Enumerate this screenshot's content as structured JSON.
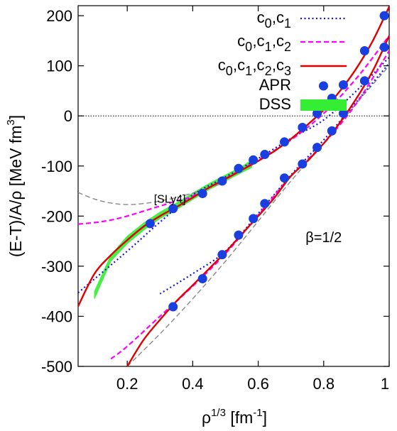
{
  "chart_data": {
    "type": "line",
    "xlabel": "ρ",
    "xlabel_sup": "1/3",
    "xlabel_unit": "[fm",
    "xlabel_unit_sup": "-1",
    "xlabel_unit_close": "]",
    "ylabel": "(E-T)/A/ρ [MeV fm",
    "ylabel_sup": "3",
    "ylabel_close": "]",
    "xlim": [
      0.05,
      1.0
    ],
    "ylim": [
      -500,
      220
    ],
    "xticks": [
      0.2,
      0.4,
      0.6,
      0.8,
      1.0
    ],
    "xtick_labels": [
      "0.2",
      "0.4",
      "0.6",
      "0.8",
      "1"
    ],
    "yticks": [
      -500,
      -400,
      -300,
      -200,
      -100,
      0,
      100,
      200
    ],
    "ytick_labels": [
      "-500",
      "-400",
      "-300",
      "-200",
      "-100",
      "0",
      "100",
      "200"
    ],
    "grid": false,
    "zero_line": true,
    "legend_position": "top-right",
    "legend": [
      {
        "label": "c",
        "subs": [
          "0",
          "1"
        ],
        "color": "#1515d8",
        "style": "dotted"
      },
      {
        "label": "c",
        "subs": [
          "0",
          "1",
          "2"
        ],
        "color": "#ff00ff",
        "style": "dashed"
      },
      {
        "label": "c",
        "subs": [
          "0",
          "1",
          "2",
          "3"
        ],
        "color": "#e00000",
        "style": "solid"
      },
      {
        "label": "APR",
        "color": "#1a3fe0",
        "style": "marker"
      },
      {
        "label": "DSS",
        "color": "#33ee33",
        "style": "band"
      }
    ],
    "annotations": [
      {
        "text": "[SLy4]",
        "x": 0.33,
        "y": -173
      },
      {
        "text": "β=1/2",
        "x": 0.8,
        "y": -252
      }
    ],
    "series": [
      {
        "name": "APR",
        "group": "upper",
        "color": "#1a3fe0",
        "kind": "points",
        "x": [
          0.27,
          0.34,
          0.43,
          0.49,
          0.54,
          0.585,
          0.62,
          0.68,
          0.735,
          0.78,
          0.825,
          0.86,
          0.925,
          0.985
        ],
        "y": [
          -215,
          -185,
          -155,
          -130,
          -105,
          -88,
          -77,
          -52,
          -23,
          5,
          35,
          62,
          130,
          200
        ]
      },
      {
        "name": "APR",
        "group": "lower",
        "color": "#1a3fe0",
        "kind": "points",
        "x": [
          0.34,
          0.43,
          0.49,
          0.54,
          0.585,
          0.62,
          0.68,
          0.735,
          0.78,
          0.825,
          0.86,
          0.925,
          0.985
        ],
        "y": [
          -381,
          -325,
          -277,
          -238,
          -205,
          -175,
          -124,
          -96,
          -63,
          -30,
          5,
          70,
          137
        ]
      },
      {
        "name": "c0,c1",
        "group": "upper",
        "color": "#1515d8",
        "kind": "dotted",
        "x": [
          0.05,
          0.2,
          0.3,
          0.4,
          0.5,
          0.6,
          0.7,
          0.8,
          0.9,
          1.0
        ],
        "y": [
          -353,
          -270,
          -212,
          -158,
          -122,
          -85,
          -45,
          -8,
          50,
          117
        ]
      },
      {
        "name": "c0,c1,c2",
        "group": "upper",
        "color": "#ff00ff",
        "kind": "dashed",
        "x": [
          0.05,
          0.1,
          0.15,
          0.2,
          0.25,
          0.3,
          0.35,
          0.4,
          0.5,
          0.6,
          0.7,
          0.8,
          0.9,
          1.0
        ],
        "y": [
          -216,
          -213,
          -208,
          -200,
          -190,
          -180,
          -170,
          -160,
          -125,
          -88,
          -48,
          5,
          75,
          160
        ]
      },
      {
        "name": "c0,c1,c2,c3",
        "group": "upper",
        "color": "#e00000",
        "kind": "solid",
        "x": [
          0.05,
          0.1,
          0.15,
          0.2,
          0.25,
          0.3,
          0.35,
          0.4,
          0.45,
          0.5,
          0.55,
          0.6,
          0.65,
          0.7,
          0.75,
          0.8,
          0.85,
          0.9,
          0.95,
          1.0
        ],
        "y": [
          -380,
          -315,
          -278,
          -248,
          -221,
          -200,
          -182,
          -163,
          -143,
          -126,
          -108,
          -90,
          -70,
          -46,
          -18,
          12,
          50,
          95,
          150,
          218
        ]
      },
      {
        "name": "[SLy4]",
        "group": "upper",
        "color": "#888888",
        "kind": "dashed",
        "x": [
          0.05,
          0.1,
          0.15,
          0.2,
          0.25,
          0.3,
          0.35,
          0.4,
          0.45,
          0.5
        ],
        "y": [
          -153,
          -166,
          -174,
          -177,
          -175,
          -170,
          -163,
          -154,
          -144,
          -132
        ]
      },
      {
        "name": "c0,c1",
        "group": "lower",
        "color": "#1515d8",
        "kind": "dotted",
        "x": [
          0.3,
          0.4,
          0.5,
          0.6,
          0.7,
          0.8,
          0.9,
          1.0
        ],
        "y": [
          -355,
          -315,
          -270,
          -195,
          -118,
          -48,
          28,
          105
        ]
      },
      {
        "name": "c0,c1,c2",
        "group": "lower",
        "color": "#ff00ff",
        "kind": "dashed",
        "x": [
          0.15,
          0.2,
          0.3,
          0.4,
          0.5,
          0.6,
          0.7,
          0.8,
          0.9,
          1.0
        ],
        "y": [
          -485,
          -460,
          -400,
          -340,
          -275,
          -198,
          -120,
          -55,
          25,
          130
        ]
      },
      {
        "name": "c0,c1,c2,c3",
        "group": "lower",
        "color": "#e00000",
        "kind": "solid",
        "x": [
          0.2,
          0.25,
          0.3,
          0.35,
          0.4,
          0.45,
          0.5,
          0.55,
          0.6,
          0.65,
          0.7,
          0.75,
          0.8,
          0.85,
          0.9,
          0.95,
          1.0
        ],
        "y": [
          -500,
          -447,
          -407,
          -370,
          -338,
          -305,
          -272,
          -236,
          -200,
          -163,
          -120,
          -90,
          -55,
          -13,
          35,
          90,
          160
        ]
      },
      {
        "name": "[SLy4]",
        "group": "lower",
        "color": "#888888",
        "kind": "dashed",
        "x": [
          0.2,
          0.3,
          0.4,
          0.5,
          0.6,
          0.7,
          0.8,
          0.9,
          1.0
        ],
        "y": [
          -500,
          -435,
          -365,
          -290,
          -210,
          -130,
          -55,
          25,
          100
        ]
      },
      {
        "name": "DSS",
        "group": "upper",
        "color": "#33ee33",
        "kind": "band",
        "x": [
          0.1,
          0.15,
          0.2,
          0.25,
          0.3,
          0.35,
          0.4,
          0.45,
          0.5,
          0.55,
          0.58
        ],
        "y_low": [
          -365,
          -290,
          -255,
          -228,
          -205,
          -187,
          -167,
          -147,
          -130,
          -113,
          -103
        ],
        "y_high": [
          -350,
          -278,
          -240,
          -214,
          -192,
          -174,
          -154,
          -135,
          -118,
          -101,
          -88
        ]
      }
    ]
  }
}
